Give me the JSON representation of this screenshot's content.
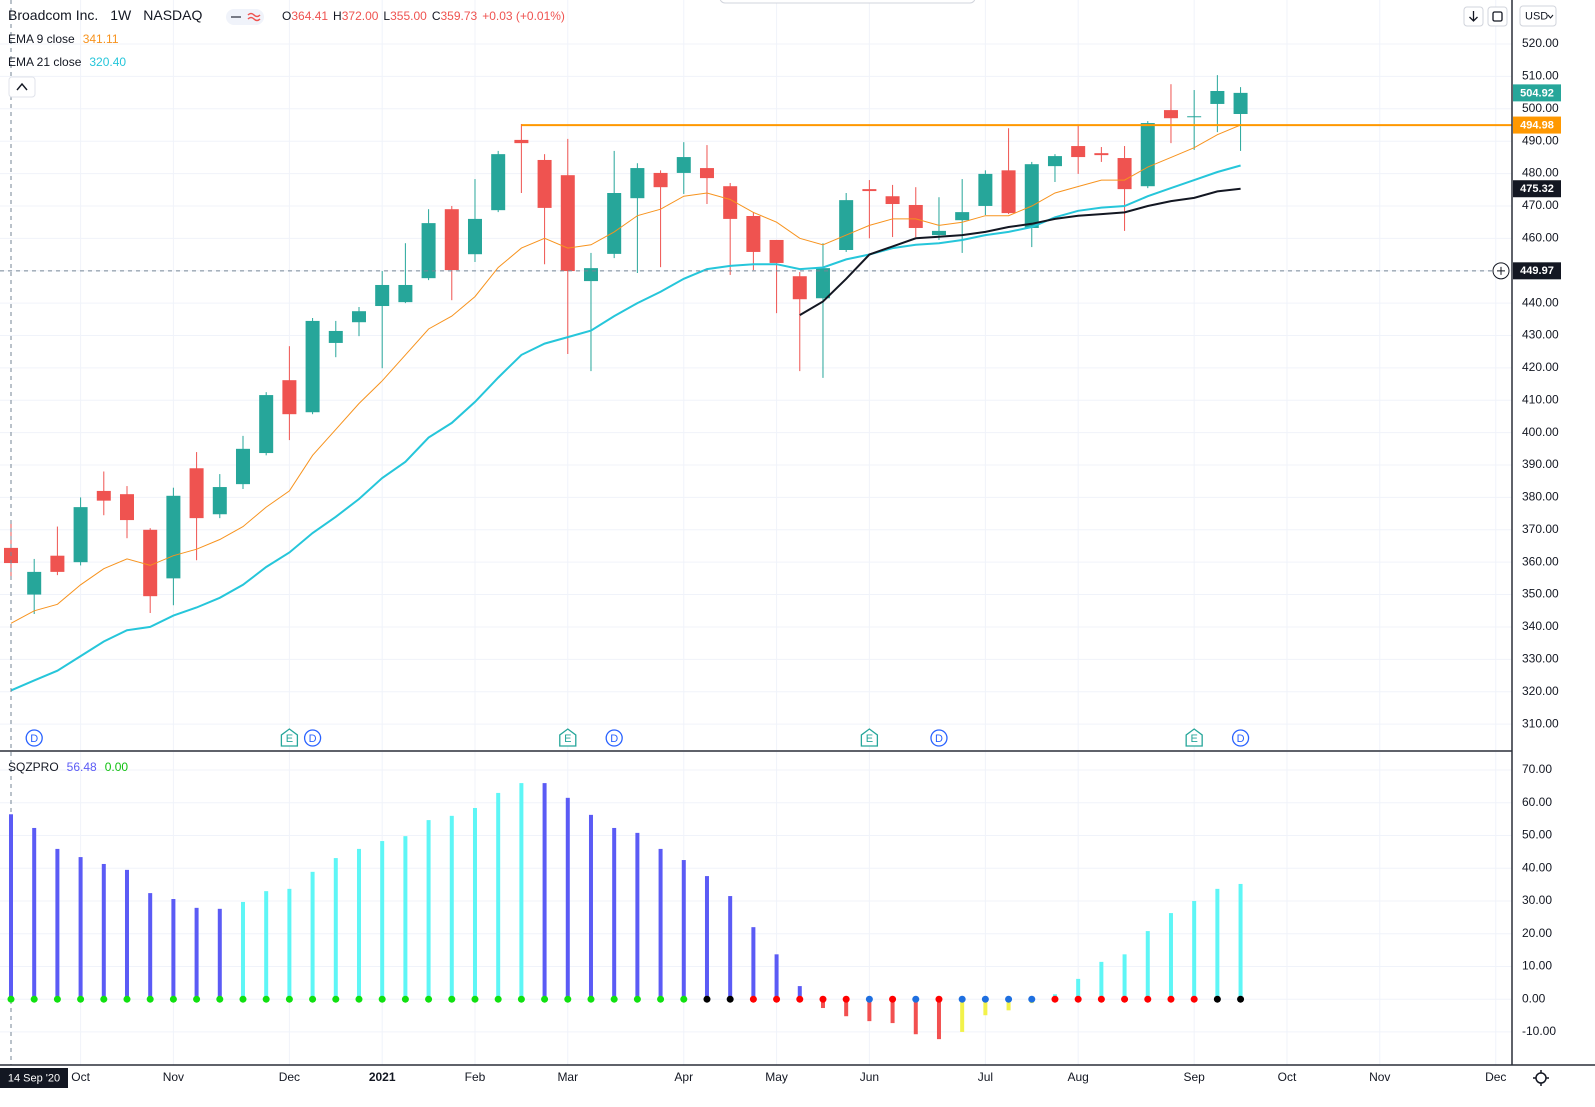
{
  "chart_data": [
    {
      "type": "candlestick",
      "title": "Broadcom Inc.",
      "interval": "1W",
      "exchange": "NASDAQ",
      "currency": "USD",
      "header_labels": [
        "O",
        "H",
        "L",
        "C"
      ],
      "header_values": [
        "364.41",
        "372.00",
        "355.00",
        "359.73"
      ],
      "change": "+0.03 (+0.01%)",
      "up_color": "#26a69a",
      "down_color": "#ef5350",
      "open": [
        364.41,
        350,
        362,
        360,
        382,
        381,
        370,
        355,
        389,
        374.8,
        384.1,
        393.7,
        416.2,
        406.3,
        427.7,
        434.1,
        439.1,
        440.3,
        447.7,
        469,
        455.1,
        468.7,
        490.4,
        484.2,
        479.5,
        446.8,
        455.2,
        472.4,
        480.2,
        480.2,
        481.7,
        476.1,
        466.9,
        459.5,
        448.3,
        441.5,
        456.4,
        475.2,
        473,
        470.3,
        461,
        465.6,
        470,
        481,
        463.2,
        482.3,
        488.5,
        486.3,
        484.8,
        476.1,
        499.6,
        497.4,
        501.5,
        498.4
      ],
      "high": [
        372,
        361,
        371,
        380,
        388,
        383.5,
        370.5,
        383,
        394,
        387.2,
        399,
        412.5,
        426.7,
        435.4,
        434.5,
        438.8,
        449.9,
        458.5,
        469,
        470,
        478.3,
        487,
        495.3,
        486,
        490.7,
        455.5,
        487,
        483.2,
        481,
        489.7,
        488.8,
        477.1,
        468.1,
        459.5,
        449.6,
        458.5,
        474,
        478,
        476.5,
        475.8,
        472.7,
        478.3,
        481,
        494,
        483.6,
        486,
        494.7,
        488.2,
        488.5,
        496.2,
        507.6,
        505.8,
        510.4,
        506.7
      ],
      "low": [
        355,
        344,
        356,
        359,
        374.5,
        367.4,
        344.3,
        346.7,
        360.6,
        373.6,
        382.6,
        393,
        397.7,
        405.7,
        423.3,
        429.8,
        419.9,
        440,
        447.1,
        440.9,
        452.7,
        468.1,
        474,
        452,
        424.3,
        419,
        453.9,
        449.3,
        451.1,
        473.7,
        470.6,
        448.7,
        450.2,
        436.9,
        419,
        416.9,
        455.8,
        460,
        460.4,
        460.4,
        459.5,
        455.5,
        467.2,
        467.5,
        457.3,
        477.4,
        479.9,
        483.6,
        462.3,
        475.5,
        489.4,
        487.3,
        492.8,
        487
      ],
      "close": [
        359.73,
        357,
        357,
        377,
        379,
        373,
        349.5,
        380.5,
        373.6,
        383.2,
        395,
        411.6,
        405.7,
        434.5,
        431.4,
        437.5,
        445.6,
        445.6,
        464.7,
        450.2,
        466,
        486,
        489.4,
        469.4,
        449.9,
        450.8,
        474,
        481.7,
        475.8,
        485.1,
        478.6,
        466,
        455.8,
        452.4,
        441.2,
        450.8,
        471.8,
        474.6,
        470.6,
        463.2,
        462.3,
        468.1,
        479.9,
        467.8,
        482.9,
        485.4,
        485.1,
        485.7,
        475.2,
        495.6,
        497.1,
        497.7,
        505.5,
        504.92
      ],
      "series": [
        {
          "name": "EMA 9 close",
          "value_label": "341.11",
          "color": "#f7931e",
          "width": 1,
          "values": [
            341.11,
            345,
            347,
            353,
            358,
            361,
            359,
            362,
            364,
            367,
            371,
            377,
            382,
            393,
            401,
            409,
            416,
            424,
            432,
            436,
            442,
            451,
            457,
            460,
            457,
            458,
            462,
            467,
            469,
            473,
            474,
            472,
            468,
            465,
            460,
            458,
            461,
            464,
            466,
            466,
            464,
            465,
            467,
            467,
            470,
            474,
            476,
            478,
            478,
            482,
            485,
            488,
            492,
            495
          ]
        },
        {
          "name": "EMA 21 close",
          "value_label": "320.40",
          "color": "#26c6da",
          "width": 2,
          "values": [
            320.4,
            323.5,
            326.5,
            331,
            335.5,
            339,
            340,
            343.5,
            346,
            349,
            353,
            358.5,
            363,
            369,
            374,
            379.5,
            386,
            391,
            398.5,
            403,
            409.5,
            417,
            424,
            427.5,
            429.5,
            431.5,
            436,
            440,
            443.5,
            447.5,
            450.5,
            451.5,
            452,
            452,
            450.5,
            451,
            453.5,
            455,
            457,
            458,
            458.5,
            459.5,
            461,
            462,
            463.5,
            466.5,
            468.5,
            469.5,
            470,
            473,
            475.5,
            478,
            480.5,
            482.5
          ]
        },
        {
          "color": "#131722",
          "width": 2,
          "values": [
            null,
            null,
            null,
            null,
            null,
            null,
            null,
            null,
            null,
            null,
            null,
            null,
            null,
            null,
            null,
            null,
            null,
            null,
            null,
            null,
            null,
            null,
            null,
            null,
            null,
            null,
            null,
            null,
            null,
            null,
            null,
            null,
            null,
            null,
            436.3,
            440.5,
            447.5,
            455,
            457.5,
            460,
            460.5,
            461,
            462,
            463.5,
            464.5,
            466,
            467,
            467.5,
            468,
            470,
            471.5,
            472.5,
            474.5,
            475.32
          ]
        }
      ],
      "hline": {
        "value": 494.98,
        "from": 22,
        "color": "#ff9800"
      },
      "tags": [
        {
          "value": 504.92,
          "color": "#26a69a"
        },
        {
          "value": 494.98,
          "color": "#ff9800"
        },
        {
          "value": 475.32,
          "color": "#131722"
        },
        {
          "value": 449.97,
          "color": "#131722"
        }
      ],
      "crosshair": {
        "x": 0,
        "x_label": "14 Sep '20",
        "y": 449.97
      },
      "events": [
        {
          "x": 1,
          "label": "D"
        },
        {
          "x": 12,
          "label": "E"
        },
        {
          "x": 13,
          "label": "D"
        },
        {
          "x": 24,
          "label": "E"
        },
        {
          "x": 26,
          "label": "D"
        },
        {
          "x": 37,
          "label": "E"
        },
        {
          "x": 40,
          "label": "D"
        },
        {
          "x": 51,
          "label": "E"
        },
        {
          "x": 53,
          "label": "D"
        }
      ],
      "xlim": [
        -0.474,
        64.7
      ],
      "xticks": [
        {
          "value": 3,
          "label": "Oct"
        },
        {
          "value": 7,
          "label": "Nov"
        },
        {
          "value": 12,
          "label": "Dec"
        },
        {
          "value": 16,
          "label": "2021"
        },
        {
          "value": 20,
          "label": "Feb"
        },
        {
          "value": 24,
          "label": "Mar"
        },
        {
          "value": 29,
          "label": "Apr"
        },
        {
          "value": 33,
          "label": "May"
        },
        {
          "value": 37,
          "label": "Jun"
        },
        {
          "value": 42,
          "label": "Jul"
        },
        {
          "value": 46,
          "label": "Aug"
        },
        {
          "value": 51,
          "label": "Sep"
        },
        {
          "value": 55,
          "label": "Oct"
        },
        {
          "value": 59,
          "label": "Nov"
        },
        {
          "value": 64,
          "label": "Dec"
        }
      ],
      "ylim": [
        302,
        533.6
      ],
      "yticks": [
        {
          "value": 310,
          "label": "310.00"
        },
        {
          "value": 320,
          "label": "320.00"
        },
        {
          "value": 330,
          "label": "330.00"
        },
        {
          "value": 340,
          "label": "340.00"
        },
        {
          "value": 350,
          "label": "350.00"
        },
        {
          "value": 360,
          "label": "360.00"
        },
        {
          "value": 370,
          "label": "370.00"
        },
        {
          "value": 380,
          "label": "380.00"
        },
        {
          "value": 390,
          "label": "390.00"
        },
        {
          "value": 400,
          "label": "400.00"
        },
        {
          "value": 410,
          "label": "410.00"
        },
        {
          "value": 420,
          "label": "420.00"
        },
        {
          "value": 430,
          "label": "430.00"
        },
        {
          "value": 440,
          "label": "440.00"
        },
        {
          "value": 450,
          "label": "450.00"
        },
        {
          "value": 460,
          "label": "460.00"
        },
        {
          "value": 470,
          "label": "470.00"
        },
        {
          "value": 480,
          "label": "480.00"
        },
        {
          "value": 490,
          "label": "490.00"
        },
        {
          "value": 500,
          "label": "500.00"
        },
        {
          "value": 510,
          "label": "510.00"
        },
        {
          "value": 520,
          "label": "520.00"
        }
      ],
      "grid": true
    },
    {
      "type": "bar",
      "title": "SQZPRO",
      "value_label": "56.48",
      "zero_label": "0.00",
      "values": [
        56.48,
        52.3,
        45.9,
        43.4,
        41.3,
        39.5,
        32.4,
        30.6,
        27.9,
        27.6,
        29.7,
        33,
        33.7,
        38.9,
        43.1,
        45.9,
        48.3,
        49.8,
        54.7,
        56,
        58.4,
        63,
        66,
        66,
        61.5,
        56.3,
        52.3,
        50.8,
        45.9,
        42.5,
        37.6,
        31.5,
        22,
        13.7,
        4,
        -2.7,
        -5.2,
        -6.7,
        -7.3,
        -10.7,
        -12.2,
        -10,
        -4.9,
        -3.4,
        -1.2,
        1.5,
        6.2,
        11.4,
        13.7,
        20.8,
        26.3,
        30,
        33.7,
        35.2
      ],
      "colors": [
        "#5b5bf5",
        "#5b5bf5",
        "#5b5bf5",
        "#5b5bf5",
        "#5b5bf5",
        "#5b5bf5",
        "#5b5bf5",
        "#5b5bf5",
        "#5b5bf5",
        "#5b5bf5",
        "#5ef6f6",
        "#5ef6f6",
        "#5ef6f6",
        "#5ef6f6",
        "#5ef6f6",
        "#5ef6f6",
        "#5ef6f6",
        "#5ef6f6",
        "#5ef6f6",
        "#5ef6f6",
        "#5ef6f6",
        "#5ef6f6",
        "#5ef6f6",
        "#5b5bf5",
        "#5b5bf5",
        "#5b5bf5",
        "#5b5bf5",
        "#5b5bf5",
        "#5b5bf5",
        "#5b5bf5",
        "#5b5bf5",
        "#5b5bf5",
        "#5b5bf5",
        "#5b5bf5",
        "#5b5bf5",
        "#f25050",
        "#f25050",
        "#f25050",
        "#f25050",
        "#f25050",
        "#f25050",
        "#f2f24a",
        "#f2f24a",
        "#f2f24a",
        "#f2f24a",
        "#5ef6f6",
        "#5ef6f6",
        "#5ef6f6",
        "#5ef6f6",
        "#5ef6f6",
        "#5ef6f6",
        "#5ef6f6",
        "#5ef6f6",
        "#5ef6f6"
      ],
      "dot_colors": [
        "#10e010",
        "#10e010",
        "#10e010",
        "#10e010",
        "#10e010",
        "#10e010",
        "#10e010",
        "#10e010",
        "#10e010",
        "#10e010",
        "#10e010",
        "#10e010",
        "#10e010",
        "#10e010",
        "#10e010",
        "#10e010",
        "#10e010",
        "#10e010",
        "#10e010",
        "#10e010",
        "#10e010",
        "#10e010",
        "#10e010",
        "#10e010",
        "#10e010",
        "#10e010",
        "#10e010",
        "#10e010",
        "#10e010",
        "#10e010",
        "#000000",
        "#000000",
        "#ff0000",
        "#ff0000",
        "#ff0000",
        "#ff0000",
        "#ff0000",
        "#1e6fe0",
        "#ff0000",
        "#1e6fe0",
        "#ff0000",
        "#1e6fe0",
        "#1e6fe0",
        "#1e6fe0",
        "#1e6fe0",
        "#ff0000",
        "#ff0000",
        "#ff0000",
        "#ff0000",
        "#ff0000",
        "#ff0000",
        "#ff0000",
        "#000000",
        "#000000"
      ],
      "value_color": "#5b5bf5",
      "zero_color": "#10c010",
      "ylim": [
        -20.1,
        75.5
      ],
      "yticks": [
        {
          "value": -10,
          "label": "-10.00"
        },
        {
          "value": 0,
          "label": "0.00"
        },
        {
          "value": 10,
          "label": "10.00"
        },
        {
          "value": 20,
          "label": "20.00"
        },
        {
          "value": 30,
          "label": "30.00"
        },
        {
          "value": 40,
          "label": "40.00"
        },
        {
          "value": 50,
          "label": "50.00"
        },
        {
          "value": 60,
          "label": "60.00"
        },
        {
          "value": 70,
          "label": "70.00"
        }
      ],
      "grid": true
    }
  ]
}
